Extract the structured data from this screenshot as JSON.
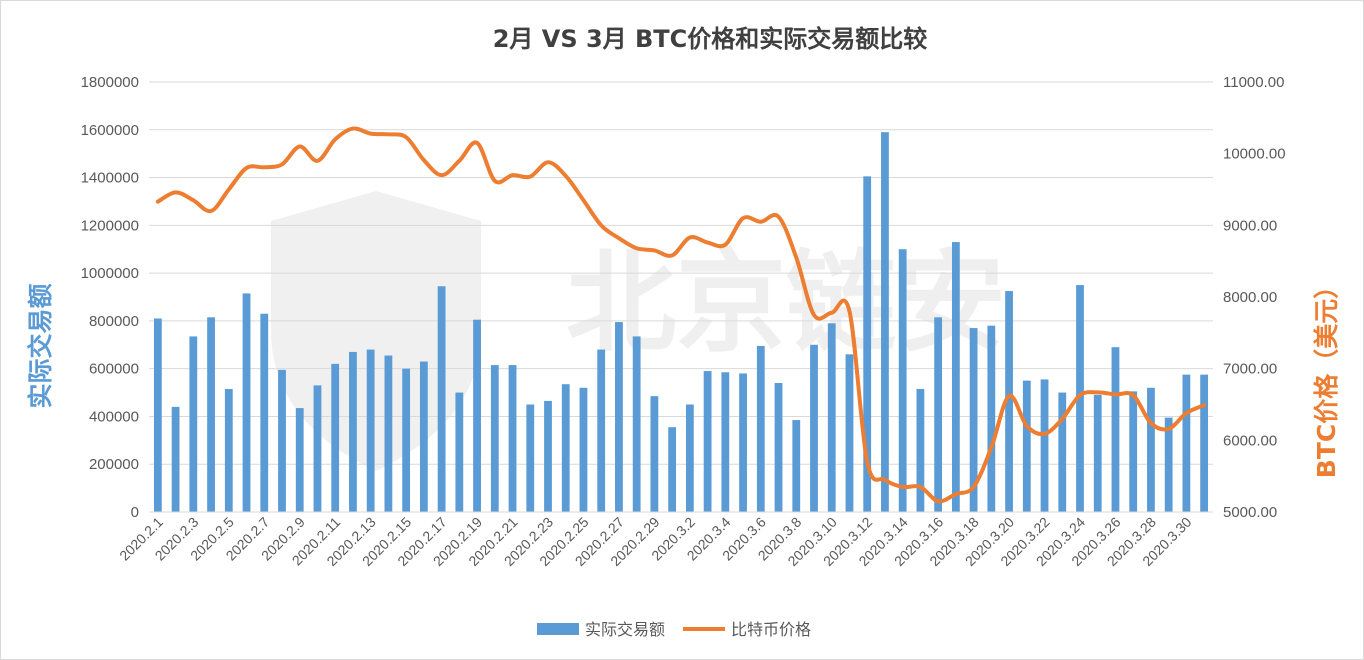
{
  "chart_data": {
    "type": "bar",
    "title": "2月 VS 3月 BTC价格和实际交易额比较",
    "ylabel": "实际交易额",
    "y2label": "BTC价格（美元）",
    "ylim": [
      0,
      1800000
    ],
    "y2lim": [
      5000,
      11000
    ],
    "yticks": [
      "0",
      "200000",
      "400000",
      "600000",
      "800000",
      "1000000",
      "1200000",
      "1400000",
      "1600000",
      "1800000"
    ],
    "y2ticks": [
      "5000.00",
      "6000.00",
      "7000.00",
      "8000.00",
      "9000.00",
      "10000.00",
      "11000.00"
    ],
    "legend_position": "bottom",
    "grid": true,
    "categories": [
      "2020.2.1",
      "2020.2.2",
      "2020.2.3",
      "2020.2.4",
      "2020.2.5",
      "2020.2.6",
      "2020.2.7",
      "2020.2.8",
      "2020.2.9",
      "2020.2.10",
      "2020.2.11",
      "2020.2.12",
      "2020.2.13",
      "2020.2.14",
      "2020.2.15",
      "2020.2.16",
      "2020.2.17",
      "2020.2.18",
      "2020.2.19",
      "2020.2.20",
      "2020.2.21",
      "2020.2.22",
      "2020.2.23",
      "2020.2.24",
      "2020.2.25",
      "2020.2.26",
      "2020.2.27",
      "2020.2.28",
      "2020.2.29",
      "2020.3.1",
      "2020.3.2",
      "2020.3.3",
      "2020.3.4",
      "2020.3.5",
      "2020.3.6",
      "2020.3.7",
      "2020.3.8",
      "2020.3.9",
      "2020.3.10",
      "2020.3.11",
      "2020.3.12",
      "2020.3.13",
      "2020.3.14",
      "2020.3.15",
      "2020.3.16",
      "2020.3.17",
      "2020.3.18",
      "2020.3.19",
      "2020.3.20",
      "2020.3.21",
      "2020.3.22",
      "2020.3.23",
      "2020.3.24",
      "2020.3.25",
      "2020.3.26",
      "2020.3.27",
      "2020.3.28",
      "2020.3.29",
      "2020.3.30",
      "2020.3.31"
    ],
    "x_tick_labels": [
      "2020.2.1",
      "2020.2.3",
      "2020.2.5",
      "2020.2.7",
      "2020.2.9",
      "2020.2.11",
      "2020.2.13",
      "2020.2.15",
      "2020.2.17",
      "2020.2.19",
      "2020.2.21",
      "2020.2.23",
      "2020.2.25",
      "2020.2.27",
      "2020.2.29",
      "2020.3.2",
      "2020.3.4",
      "2020.3.6",
      "2020.3.8",
      "2020.3.10",
      "2020.3.12",
      "2020.3.14",
      "2020.3.16",
      "2020.3.18",
      "2020.3.20",
      "2020.3.22",
      "2020.3.24",
      "2020.3.26",
      "2020.3.28",
      "2020.3.30"
    ],
    "series": [
      {
        "name": "实际交易额",
        "type": "bar",
        "axis": "left",
        "color": "#5b9bd5",
        "values": [
          810000,
          440000,
          735000,
          815000,
          515000,
          915000,
          830000,
          595000,
          435000,
          530000,
          620000,
          670000,
          680000,
          655000,
          600000,
          630000,
          945000,
          500000,
          805000,
          615000,
          615000,
          450000,
          465000,
          535000,
          520000,
          680000,
          795000,
          735000,
          485000,
          355000,
          450000,
          590000,
          585000,
          580000,
          695000,
          540000,
          385000,
          700000,
          790000,
          660000,
          1405000,
          1590000,
          1100000,
          515000,
          815000,
          1130000,
          770000,
          780000,
          925000,
          550000,
          555000,
          500000,
          950000,
          490000,
          690000,
          505000,
          520000,
          395000,
          575000,
          575000
        ]
      },
      {
        "name": "比特币价格",
        "type": "line",
        "axis": "right",
        "color": "#ed7d31",
        "values": [
          9330,
          9460,
          9350,
          9200,
          9500,
          9800,
          9810,
          9850,
          10100,
          9900,
          10200,
          10350,
          10280,
          10270,
          10230,
          9910,
          9700,
          9900,
          10150,
          9620,
          9700,
          9680,
          9880,
          9690,
          9350,
          9000,
          8820,
          8680,
          8650,
          8580,
          8830,
          8760,
          8730,
          9100,
          9050,
          9120,
          8550,
          7750,
          7780,
          7800,
          5700,
          5450,
          5350,
          5350,
          5150,
          5250,
          5350,
          5900,
          6620,
          6200,
          6090,
          6300,
          6630,
          6670,
          6640,
          6630,
          6240,
          6160,
          6380,
          6490
        ]
      }
    ]
  },
  "legend": {
    "bar_label": "实际交易额",
    "line_label": "比特币价格"
  },
  "watermark": {
    "text": "北京链安",
    "color": "#000000"
  }
}
